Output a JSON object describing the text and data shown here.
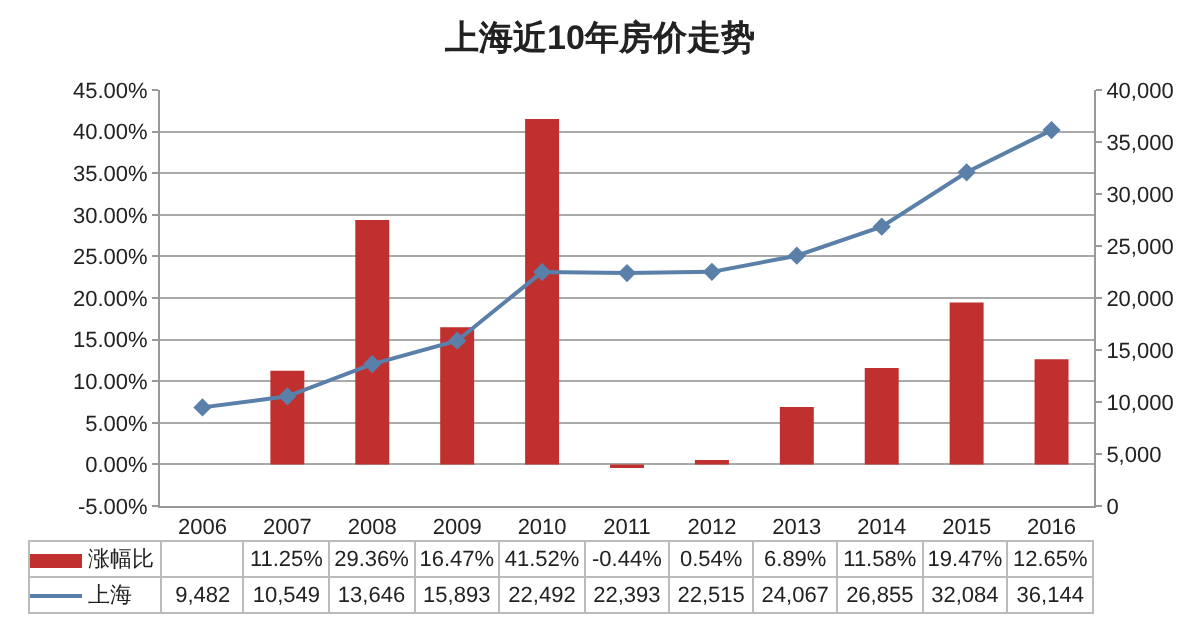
{
  "chart_data": {
    "type": "bar",
    "title": "上海近10年房价走势",
    "categories": [
      "2006",
      "2007",
      "2008",
      "2009",
      "2010",
      "2011",
      "2012",
      "2013",
      "2014",
      "2015",
      "2016"
    ],
    "series": [
      {
        "name": "涨幅比",
        "color": "#c0302f",
        "values": [
          null,
          11.25,
          29.36,
          16.47,
          41.52,
          -0.44,
          0.54,
          6.89,
          11.58,
          19.47,
          12.65
        ],
        "value_labels": [
          null,
          "11.25%",
          "29.36%",
          "16.47%",
          "41.52%",
          "-0.44%",
          "0.54%",
          "6.89%",
          "11.58%",
          "19.47%",
          "12.65%"
        ]
      },
      {
        "name": "上海",
        "type": "line",
        "axis": "y2",
        "color": "#5a7fa8",
        "marker": "diamond",
        "values": [
          9482,
          10549,
          13646,
          15893,
          22492,
          22393,
          22515,
          24067,
          26855,
          32084,
          36144
        ],
        "value_labels": [
          "9,482",
          "10,549",
          "13,646",
          "15,893",
          "22,492",
          "22,393",
          "22,515",
          "24,067",
          "26,855",
          "32,084",
          "36,144"
        ]
      }
    ],
    "ylim": [
      -5,
      45
    ],
    "yticks": [
      {
        "value": -5,
        "label": "-5.00%"
      },
      {
        "value": 0,
        "label": "0.00%"
      },
      {
        "value": 5,
        "label": "5.00%"
      },
      {
        "value": 10,
        "label": "10.00%"
      },
      {
        "value": 15,
        "label": "15.00%"
      },
      {
        "value": 20,
        "label": "20.00%"
      },
      {
        "value": 25,
        "label": "25.00%"
      },
      {
        "value": 30,
        "label": "30.00%"
      },
      {
        "value": 35,
        "label": "35.00%"
      },
      {
        "value": 40,
        "label": "40.00%"
      },
      {
        "value": 45,
        "label": "45.00%"
      }
    ],
    "y2lim": [
      0,
      40000
    ],
    "y2ticks": [
      0,
      {
        "value": 5000,
        "label": "5,000"
      },
      {
        "value": 10000,
        "label": "10,000"
      },
      {
        "value": 15000,
        "label": "15,000"
      },
      {
        "value": 20000,
        "label": "20,000"
      },
      {
        "value": 25000,
        "label": "25,000"
      },
      {
        "value": 30000,
        "label": "30,000"
      },
      {
        "value": 35000,
        "label": "35,000"
      },
      {
        "value": 40000,
        "label": "40,000"
      }
    ],
    "grid": "y",
    "legend": "bottom"
  }
}
